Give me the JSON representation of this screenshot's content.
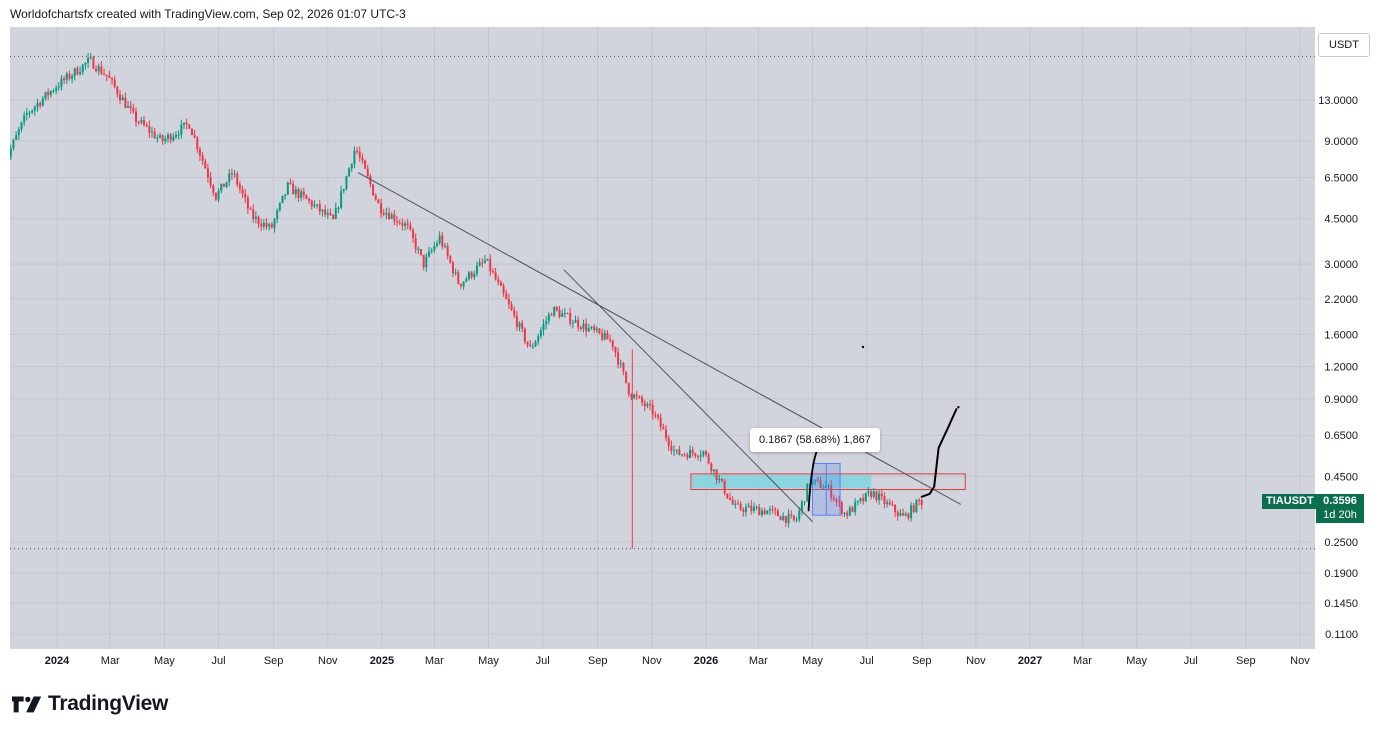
{
  "caption": "Worldofchartsfx created with TradingView.com, Sep 02, 2026 01:07 UTC-3",
  "currency": "USDT",
  "brand": "TradingView",
  "symbol_badge": "TIAUSDT",
  "price_badge": {
    "price": "0.3596",
    "countdown": "1d 20h"
  },
  "measure_tooltip": "0.1867 (58.68%) 1,867",
  "colors": {
    "up": "#089981",
    "down": "#f23645",
    "badge": "#0b6e4f",
    "zone_fill": "#7fd3e0",
    "zone_border": "#e03a3a",
    "trendline": "#50535e",
    "measure_box": "#5b7ff0"
  },
  "chart_data": {
    "type": "candlestick",
    "scale": "log",
    "ylim": [
      0.09,
      24
    ],
    "y_ticks": [
      {
        "label": "13.0000",
        "value": 13
      },
      {
        "label": "9.0000",
        "value": 9
      },
      {
        "label": "6.5000",
        "value": 6.5
      },
      {
        "label": "4.5000",
        "value": 4.5
      },
      {
        "label": "3.0000",
        "value": 3
      },
      {
        "label": "2.2000",
        "value": 2.2
      },
      {
        "label": "1.6000",
        "value": 1.6
      },
      {
        "label": "1.2000",
        "value": 1.2
      },
      {
        "label": "0.9000",
        "value": 0.9
      },
      {
        "label": "0.6500",
        "value": 0.65
      },
      {
        "label": "0.4500",
        "value": 0.45
      },
      {
        "label": "0.2500",
        "value": 0.25
      },
      {
        "label": "0.1900",
        "value": 0.19
      },
      {
        "label": "0.1450",
        "value": 0.145
      },
      {
        "label": "0.1100",
        "value": 0.11
      }
    ],
    "x_ticks": [
      {
        "label": "2024",
        "date": "2024-01-01",
        "bold": true
      },
      {
        "label": "Mar",
        "date": "2024-03-01"
      },
      {
        "label": "May",
        "date": "2024-05-01"
      },
      {
        "label": "Jul",
        "date": "2024-07-01"
      },
      {
        "label": "Sep",
        "date": "2024-09-01"
      },
      {
        "label": "Nov",
        "date": "2024-11-01"
      },
      {
        "label": "2025",
        "date": "2025-01-01",
        "bold": true
      },
      {
        "label": "Mar",
        "date": "2025-03-01"
      },
      {
        "label": "May",
        "date": "2025-05-01"
      },
      {
        "label": "Jul",
        "date": "2025-07-01"
      },
      {
        "label": "Sep",
        "date": "2025-09-01"
      },
      {
        "label": "Nov",
        "date": "2025-11-01"
      },
      {
        "label": "2026",
        "date": "2026-01-01",
        "bold": true
      },
      {
        "label": "Mar",
        "date": "2026-03-01"
      },
      {
        "label": "May",
        "date": "2026-05-01"
      },
      {
        "label": "Jul",
        "date": "2026-07-01"
      },
      {
        "label": "Sep",
        "date": "2026-09-01"
      },
      {
        "label": "Nov",
        "date": "2026-11-01"
      },
      {
        "label": "2027",
        "date": "2027-01-01",
        "bold": true
      },
      {
        "label": "Mar",
        "date": "2027-03-01"
      },
      {
        "label": "May",
        "date": "2027-05-01"
      },
      {
        "label": "Jul",
        "date": "2027-07-01"
      },
      {
        "label": "Sep",
        "date": "2027-09-01"
      },
      {
        "label": "Nov",
        "date": "2027-11-01"
      }
    ],
    "all_time_high": 19.2,
    "all_time_low": 0.236,
    "last_price": 0.3596,
    "price_path": [
      {
        "date": "2023-11-01",
        "close": 6.8
      },
      {
        "date": "2023-12-01",
        "close": 11.5
      },
      {
        "date": "2024-01-01",
        "close": 14.5
      },
      {
        "date": "2024-02-10",
        "close": 18.5
      },
      {
        "date": "2024-03-01",
        "close": 16
      },
      {
        "date": "2024-04-01",
        "close": 11
      },
      {
        "date": "2024-05-01",
        "close": 9
      },
      {
        "date": "2024-06-01",
        "close": 10.5
      },
      {
        "date": "2024-07-01",
        "close": 5.5
      },
      {
        "date": "2024-07-20",
        "close": 6.8
      },
      {
        "date": "2024-08-10",
        "close": 4.6
      },
      {
        "date": "2024-09-01",
        "close": 4.1
      },
      {
        "date": "2024-09-20",
        "close": 6
      },
      {
        "date": "2024-10-15",
        "close": 5.2
      },
      {
        "date": "2024-11-10",
        "close": 4.4
      },
      {
        "date": "2024-12-05",
        "close": 8.5
      },
      {
        "date": "2025-01-01",
        "close": 5.0
      },
      {
        "date": "2025-02-01",
        "close": 4.2
      },
      {
        "date": "2025-02-20",
        "close": 3.0
      },
      {
        "date": "2025-03-10",
        "close": 3.8
      },
      {
        "date": "2025-04-01",
        "close": 2.5
      },
      {
        "date": "2025-05-01",
        "close": 3.1
      },
      {
        "date": "2025-06-01",
        "close": 1.9
      },
      {
        "date": "2025-06-20",
        "close": 1.4
      },
      {
        "date": "2025-07-15",
        "close": 2.0
      },
      {
        "date": "2025-08-15",
        "close": 1.75
      },
      {
        "date": "2025-09-20",
        "close": 1.5
      },
      {
        "date": "2025-10-10",
        "close": 0.95
      },
      {
        "date": "2025-11-05",
        "close": 0.8
      },
      {
        "date": "2025-12-01",
        "close": 0.55
      },
      {
        "date": "2026-01-01",
        "close": 0.56
      },
      {
        "date": "2026-02-05",
        "close": 0.34
      },
      {
        "date": "2026-03-15",
        "close": 0.33
      },
      {
        "date": "2026-04-15",
        "close": 0.3
      },
      {
        "date": "2026-05-01",
        "close": 0.43
      },
      {
        "date": "2026-05-20",
        "close": 0.41
      },
      {
        "date": "2026-06-10",
        "close": 0.32
      },
      {
        "date": "2026-07-10",
        "close": 0.39
      },
      {
        "date": "2026-08-15",
        "close": 0.31
      },
      {
        "date": "2026-09-01",
        "close": 0.3596
      }
    ],
    "annotations": {
      "trendlines": [
        {
          "from": {
            "date": "2024-12-05",
            "price": 6.8
          },
          "to": {
            "date": "2026-10-15",
            "price": 0.35
          }
        },
        {
          "from": {
            "date": "2025-07-25",
            "price": 2.85
          },
          "to": {
            "date": "2026-05-01",
            "price": 0.3
          }
        }
      ],
      "resistance_zone": {
        "from": "2025-12-15",
        "to": "2026-10-20",
        "low": 0.4,
        "high": 0.46
      },
      "measure_box": {
        "from": "2026-05-01",
        "to": "2026-06-01",
        "low": 0.318,
        "high": 0.505
      },
      "forecast_path": [
        {
          "date": "2026-09-01",
          "price": 0.375
        },
        {
          "date": "2026-09-10",
          "price": 0.385
        },
        {
          "date": "2026-09-15",
          "price": 0.41
        },
        {
          "date": "2026-09-20",
          "price": 0.58
        },
        {
          "date": "2026-10-01",
          "price": 0.7
        },
        {
          "date": "2026-10-10",
          "price": 0.82
        }
      ]
    }
  }
}
